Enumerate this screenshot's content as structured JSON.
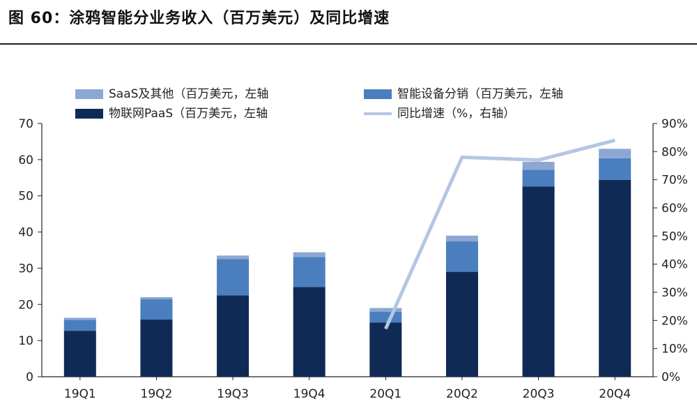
{
  "title": "图 60：涂鸦智能分业务收入（百万美元）及同比增速",
  "colors": {
    "saas": "#8ca7d4",
    "devices": "#4a7ebf",
    "iot": "#0f2a55",
    "yoy": "#b4c6e4"
  },
  "chart_data": {
    "type": "bar",
    "stacked": true,
    "categories": [
      "19Q1",
      "19Q2",
      "19Q3",
      "19Q4",
      "20Q1",
      "20Q2",
      "20Q3",
      "20Q4"
    ],
    "series": [
      {
        "name": "物联网PaaS（百万美元，左轴",
        "values": [
          12.7,
          15.8,
          22.5,
          24.8,
          15.0,
          29.0,
          52.6,
          54.4
        ]
      },
      {
        "name": "智能设备分销（百万美元，左轴",
        "values": [
          3.0,
          5.6,
          10.0,
          8.3,
          3.0,
          8.4,
          4.6,
          6.0
        ]
      },
      {
        "name": "SaaS及其他（百万美元，左轴",
        "values": [
          0.6,
          0.6,
          1.0,
          1.3,
          1.0,
          1.6,
          2.2,
          2.6
        ]
      }
    ],
    "line_series": {
      "name": "同比增速（%，右轴）",
      "x_start_index": 4,
      "values": [
        17,
        78,
        77,
        84
      ]
    },
    "ylim": [
      0,
      70
    ],
    "yticks": [
      "0",
      "10",
      "20",
      "30",
      "40",
      "50",
      "60",
      "70"
    ],
    "y2lim": [
      0,
      90
    ],
    "y2ticks": [
      "0%",
      "10%",
      "20%",
      "30%",
      "40%",
      "50%",
      "60%",
      "70%",
      "80%",
      "90%"
    ],
    "legend_position": "top"
  }
}
